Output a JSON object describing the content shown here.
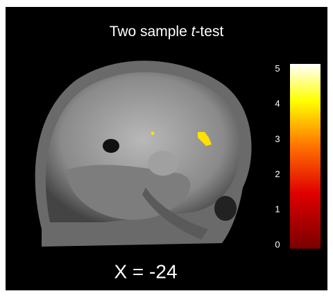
{
  "title": {
    "before": "Two sample ",
    "italic": "t",
    "after": "-test"
  },
  "slice_label": "X = -24",
  "colorbar": {
    "lim": [
      -0.1,
      5.15
    ],
    "ticks": [
      0,
      1,
      2,
      3,
      4,
      5
    ]
  }
}
